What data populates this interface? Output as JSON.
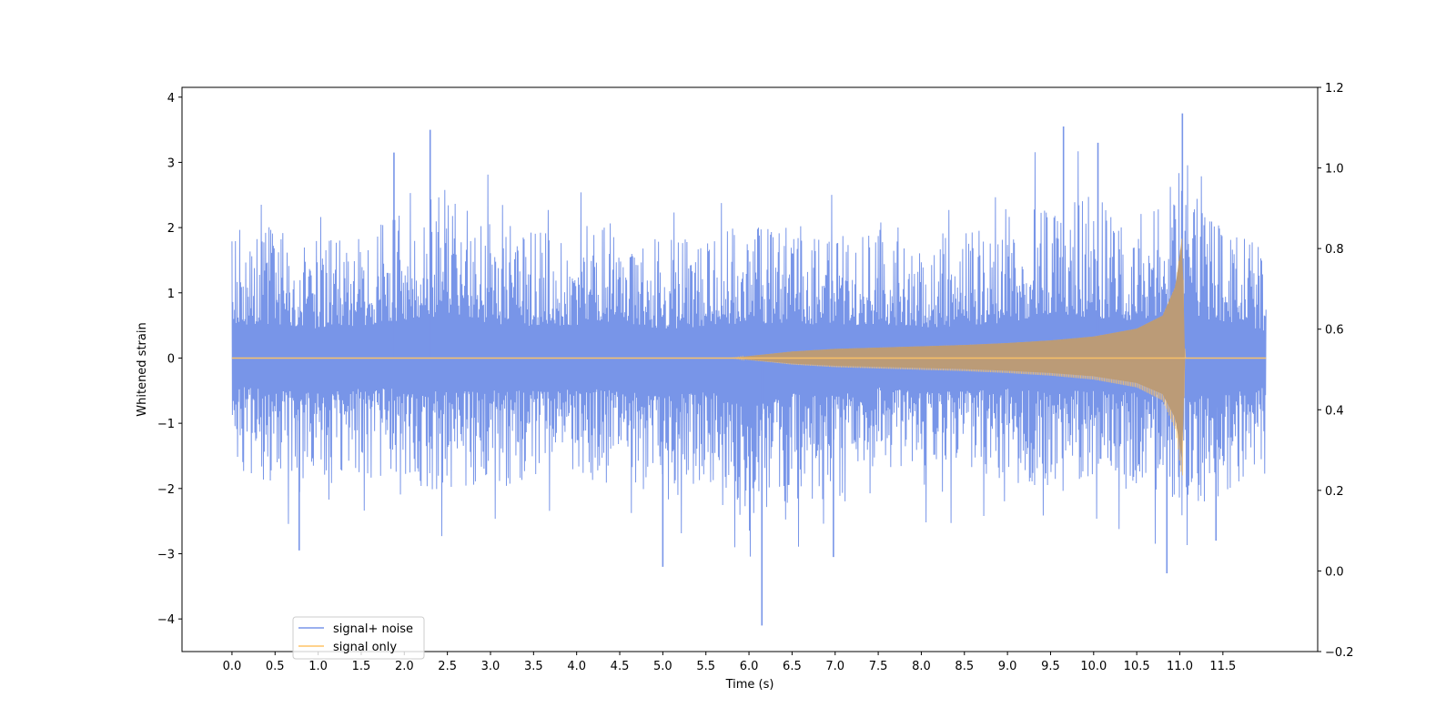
{
  "chart_data": {
    "type": "line",
    "title": "",
    "xlabel": "Time (s)",
    "ylabel": "Whitened strain",
    "xlim": [
      -0.58,
      12.6
    ],
    "ylim": [
      -4.5,
      4.15
    ],
    "y2lim": [
      -0.2,
      1.2
    ],
    "x_ticks": [
      "0.0",
      "0.5",
      "1.0",
      "1.5",
      "2.0",
      "2.5",
      "3.0",
      "3.5",
      "4.0",
      "4.5",
      "5.0",
      "5.5",
      "6.0",
      "6.5",
      "7.0",
      "7.5",
      "8.0",
      "8.5",
      "9.0",
      "9.5",
      "10.0",
      "10.5",
      "11.0",
      "11.5"
    ],
    "y_ticks": [
      "4",
      "3",
      "2",
      "1",
      "0",
      "−1",
      "−2",
      "−3",
      "−4"
    ],
    "y2_ticks": [
      "1.2",
      "1.0",
      "0.8",
      "0.6",
      "0.4",
      "0.2",
      "0.0",
      "−0.2"
    ],
    "legend_position": "lower-left",
    "series": [
      {
        "name": "signal+ noise",
        "color": "#7895e8",
        "envelope": {
          "x": [
            0.0,
            0.5,
            1.0,
            1.5,
            2.0,
            2.5,
            3.0,
            3.5,
            4.0,
            4.5,
            5.0,
            5.5,
            6.0,
            6.5,
            7.0,
            7.5,
            8.0,
            8.5,
            9.0,
            9.5,
            10.0,
            10.5,
            11.0,
            11.5,
            12.0
          ],
          "upper": [
            2.7,
            2.8,
            2.4,
            2.6,
            3.1,
            3.5,
            2.8,
            2.6,
            2.7,
            2.8,
            2.4,
            2.5,
            2.8,
            2.9,
            2.6,
            2.8,
            2.5,
            2.6,
            2.9,
            3.6,
            3.3,
            3.0,
            3.8,
            2.8,
            2.2
          ],
          "lower": [
            -2.3,
            -2.6,
            -2.9,
            -2.5,
            -2.5,
            -2.8,
            -2.6,
            -2.7,
            -2.5,
            -2.6,
            -3.2,
            -2.6,
            -4.1,
            -2.9,
            -3.1,
            -2.4,
            -2.8,
            -2.7,
            -2.5,
            -2.8,
            -2.6,
            -2.7,
            -3.3,
            -2.9,
            -2.4
          ]
        },
        "peaks": [
          {
            "x": 2.3,
            "y": 3.5
          },
          {
            "x": 1.88,
            "y": 3.15
          },
          {
            "x": 9.65,
            "y": 3.55
          },
          {
            "x": 10.05,
            "y": 3.3
          },
          {
            "x": 11.03,
            "y": 3.75
          },
          {
            "x": 6.15,
            "y": -4.1
          },
          {
            "x": 0.78,
            "y": -2.95
          },
          {
            "x": 5.0,
            "y": -3.2
          },
          {
            "x": 10.85,
            "y": -3.3
          },
          {
            "x": 6.98,
            "y": -3.05
          },
          {
            "x": 11.42,
            "y": -2.8
          }
        ]
      },
      {
        "name": "signal only",
        "color": "#ffc466",
        "envelope": {
          "x": [
            0.0,
            5.8,
            6.0,
            6.5,
            7.0,
            7.5,
            8.0,
            8.5,
            9.0,
            9.5,
            10.0,
            10.5,
            10.8,
            10.95,
            11.03,
            11.05,
            11.06,
            12.0
          ],
          "amplitude": [
            0.0,
            0.0,
            0.03,
            0.1,
            0.14,
            0.16,
            0.18,
            0.2,
            0.23,
            0.27,
            0.33,
            0.45,
            0.65,
            1.1,
            1.9,
            0.5,
            0.0,
            0.0
          ]
        }
      }
    ]
  }
}
